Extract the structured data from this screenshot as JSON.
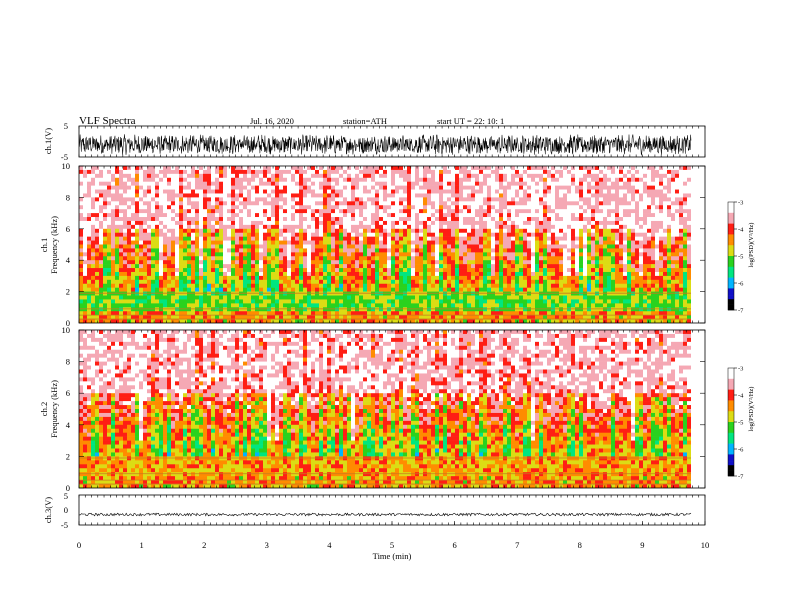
{
  "header": {
    "title": "VLF  Spectra",
    "date": "Jul.  16,  2020",
    "station": "station=ATH",
    "start": "start  UT  =    22: 10: 1"
  },
  "colors": {
    "waveform": "#000000",
    "colormap": [
      "#000000",
      "#1010c8",
      "#00b4ff",
      "#00e680",
      "#2ad21e",
      "#dcdc14",
      "#ff8c00",
      "#ff1e14",
      "#f5a8b4",
      "#ffffff"
    ]
  },
  "chart_data": [
    {
      "type": "line",
      "panel": "ch1-waveform",
      "ylabel": "ch.1(V)",
      "ylim": [
        -5,
        5
      ],
      "yticks": [
        "5",
        "-5"
      ],
      "description_series": "noisy waveform centered near -1 V, swinging roughly -5 to +2 V"
    },
    {
      "type": "heatmap",
      "panel": "ch1-spectrogram",
      "ylabel_top": "ch.1",
      "ylabel": "Frequency  (kHz)",
      "ylim": [
        0,
        10
      ],
      "yticks": [
        "0",
        "2",
        "4",
        "6",
        "8",
        "10"
      ],
      "colorbar": {
        "label": "log(PSD)(V²/Hz)",
        "range": [
          -7,
          -3
        ],
        "ticks": [
          "-3",
          "-4",
          "-5",
          "-6",
          "-7"
        ]
      }
    },
    {
      "type": "heatmap",
      "panel": "ch2-spectrogram",
      "ylabel_top": "ch.2",
      "ylabel": "Frequency  (kHz)",
      "ylim": [
        0,
        10
      ],
      "yticks": [
        "0",
        "2",
        "4",
        "6",
        "8",
        "10"
      ],
      "colorbar": {
        "label": "log(PSD)(V²/Hz)",
        "range": [
          -7,
          -3
        ],
        "ticks": [
          "-3",
          "-4",
          "-5",
          "-6",
          "-7"
        ]
      }
    },
    {
      "type": "line",
      "panel": "ch3-waveform",
      "ylabel": "ch.3(V)",
      "ylim": [
        -5,
        5
      ],
      "yticks": [
        "5",
        "0",
        "-5"
      ],
      "level": -1.5
    }
  ],
  "xaxis": {
    "label": "Time  (min)",
    "range": [
      0,
      10
    ],
    "ticks": [
      "0",
      "1",
      "2",
      "3",
      "4",
      "5",
      "6",
      "7",
      "8",
      "9",
      "10"
    ]
  }
}
